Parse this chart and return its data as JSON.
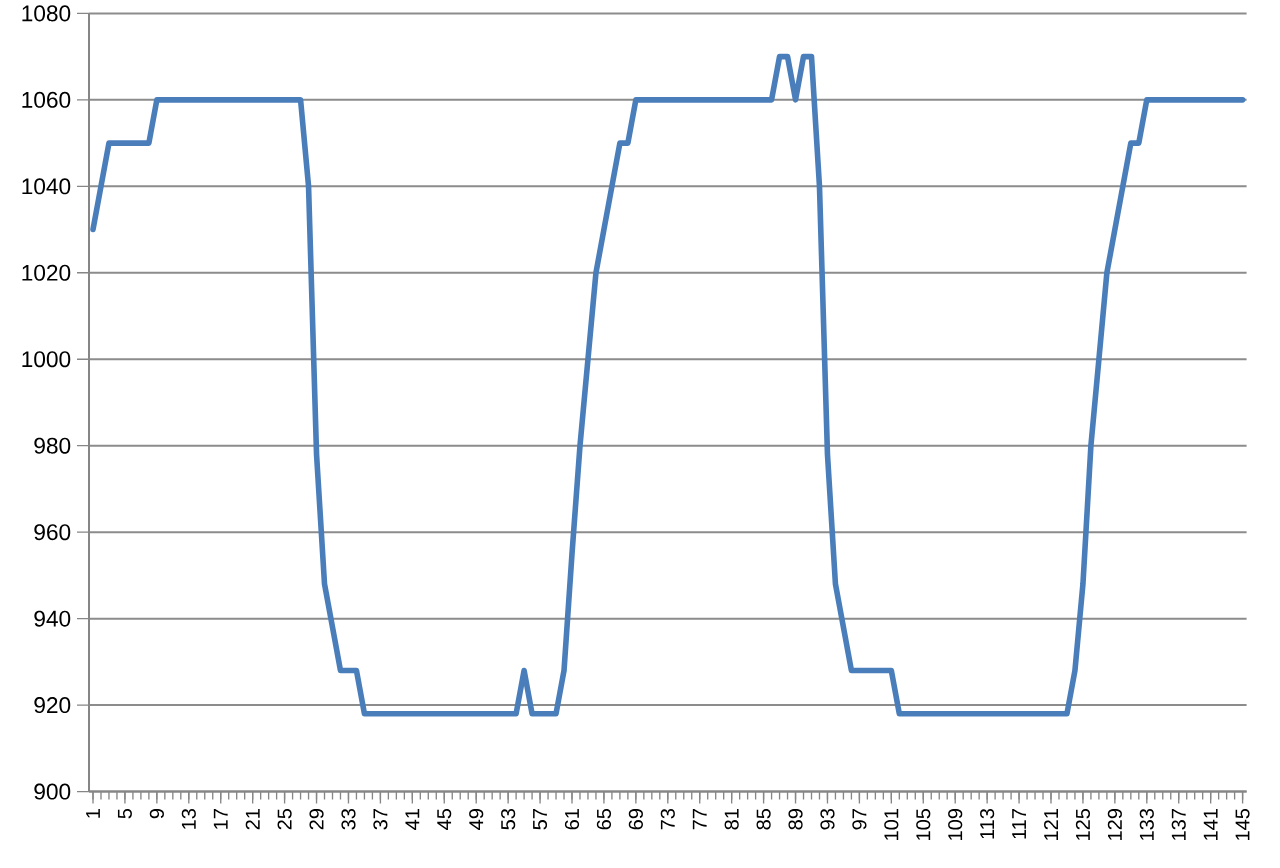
{
  "chart_data": {
    "type": "line",
    "categories": [
      "1",
      null,
      null,
      null,
      "5",
      null,
      null,
      null,
      "9",
      null,
      null,
      null,
      "13",
      null,
      null,
      null,
      "17",
      null,
      null,
      null,
      "21",
      null,
      null,
      null,
      "25",
      null,
      null,
      null,
      "29",
      null,
      null,
      null,
      "33",
      null,
      null,
      null,
      "37",
      null,
      null,
      null,
      "41",
      null,
      null,
      null,
      "45",
      null,
      null,
      null,
      "49",
      null,
      null,
      null,
      "53",
      null,
      null,
      null,
      "57",
      null,
      null,
      null,
      "61",
      null,
      null,
      null,
      "65",
      null,
      null,
      null,
      "69",
      null,
      null,
      null,
      "73",
      null,
      null,
      null,
      "77",
      null,
      null,
      null,
      "81",
      null,
      null,
      null,
      "85",
      null,
      null,
      null,
      "89",
      null,
      null,
      null,
      "93",
      null,
      null,
      null,
      "97",
      null,
      null,
      null,
      "101",
      null,
      null,
      null,
      "105",
      null,
      null,
      null,
      "109",
      null,
      null,
      null,
      "113",
      null,
      null,
      null,
      "117",
      null,
      null,
      null,
      "121",
      null,
      null,
      null,
      "125",
      null,
      null,
      null,
      "129",
      null,
      null,
      null,
      "133",
      null,
      null,
      null,
      "137",
      null,
      null,
      null,
      "141",
      null,
      null,
      null,
      "145"
    ],
    "values": [
      1030,
      1040,
      1050,
      1050,
      1050,
      1050,
      1050,
      1050,
      1060,
      1060,
      1060,
      1060,
      1060,
      1060,
      1060,
      1060,
      1060,
      1060,
      1060,
      1060,
      1060,
      1060,
      1060,
      1060,
      1060,
      1060,
      1060,
      1040,
      978,
      948,
      938,
      928,
      928,
      928,
      918,
      918,
      918,
      918,
      918,
      918,
      918,
      918,
      918,
      918,
      918,
      918,
      918,
      918,
      918,
      918,
      918,
      918,
      918,
      918,
      928,
      918,
      918,
      918,
      918,
      928,
      955,
      980,
      1000,
      1020,
      1030,
      1040,
      1050,
      1050,
      1060,
      1060,
      1060,
      1060,
      1060,
      1060,
      1060,
      1060,
      1060,
      1060,
      1060,
      1060,
      1060,
      1060,
      1060,
      1060,
      1060,
      1060,
      1070,
      1070,
      1060,
      1070,
      1070,
      1040,
      978,
      948,
      938,
      928,
      928,
      928,
      928,
      928,
      928,
      918,
      918,
      918,
      918,
      918,
      918,
      918,
      918,
      918,
      918,
      918,
      918,
      918,
      918,
      918,
      918,
      918,
      918,
      918,
      918,
      918,
      918,
      928,
      948,
      980,
      1000,
      1020,
      1030,
      1040,
      1050,
      1050,
      1060,
      1060,
      1060,
      1060,
      1060,
      1060,
      1060,
      1060,
      1060,
      1060,
      1060,
      1060,
      1060
    ],
    "color": "#4a7ebb",
    "ylim": [
      900,
      1080
    ],
    "yticks": [
      900,
      920,
      940,
      960,
      980,
      1000,
      1020,
      1040,
      1060,
      1080
    ],
    "grid": "y"
  }
}
